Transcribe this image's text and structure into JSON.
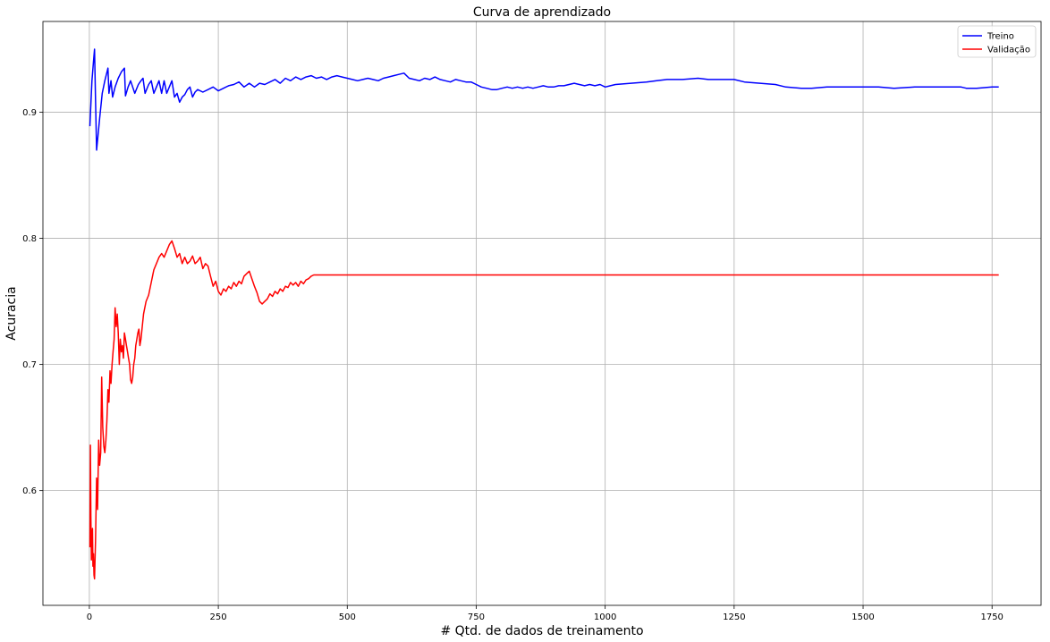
{
  "chart_data": {
    "type": "line",
    "title": "Curva de aprendizado",
    "xlabel": "# Qtd. de dados de treinamento",
    "ylabel": "Acuracia",
    "xlim": [
      -90,
      1845
    ],
    "ylim": [
      0.509,
      0.972
    ],
    "xticks": [
      0,
      250,
      500,
      750,
      1000,
      1250,
      1500,
      1750
    ],
    "yticks": [
      0.6,
      0.7,
      0.8,
      0.9
    ],
    "xtick_labels": [
      "0",
      "250",
      "500",
      "750",
      "1000",
      "1250",
      "1500",
      "1750"
    ],
    "ytick_labels": [
      "0.6",
      "0.7",
      "0.8",
      "0.9"
    ],
    "grid": true,
    "legend_position": "top-right",
    "series": [
      {
        "name": "Treino",
        "color": "#0000ff",
        "x": [
          1,
          5,
          8,
          10,
          12,
          14,
          20,
          25,
          30,
          36,
          38,
          42,
          45,
          50,
          56,
          62,
          68,
          70,
          75,
          80,
          88,
          95,
          100,
          104,
          108,
          115,
          120,
          125,
          130,
          135,
          140,
          145,
          150,
          155,
          160,
          165,
          170,
          175,
          180,
          185,
          190,
          195,
          200,
          205,
          210,
          220,
          230,
          240,
          250,
          260,
          270,
          280,
          290,
          300,
          310,
          320,
          330,
          340,
          350,
          360,
          370,
          380,
          390,
          400,
          410,
          420,
          430,
          440,
          450,
          460,
          470,
          480,
          490,
          500,
          510,
          520,
          530,
          540,
          550,
          560,
          570,
          580,
          590,
          600,
          610,
          620,
          630,
          640,
          650,
          660,
          670,
          680,
          690,
          700,
          710,
          720,
          730,
          740,
          750,
          760,
          770,
          780,
          790,
          800,
          810,
          820,
          830,
          840,
          850,
          860,
          870,
          880,
          890,
          900,
          910,
          920,
          930,
          940,
          950,
          960,
          970,
          980,
          990,
          1000,
          1010,
          1020,
          1050,
          1080,
          1100,
          1120,
          1150,
          1180,
          1200,
          1220,
          1250,
          1270,
          1300,
          1330,
          1350,
          1380,
          1400,
          1430,
          1460,
          1500,
          1530,
          1560,
          1600,
          1630,
          1660,
          1690,
          1700,
          1720,
          1750,
          1763
        ],
        "y": [
          0.889,
          0.925,
          0.94,
          0.95,
          0.91,
          0.87,
          0.895,
          0.915,
          0.925,
          0.935,
          0.915,
          0.925,
          0.912,
          0.92,
          0.927,
          0.932,
          0.935,
          0.913,
          0.92,
          0.925,
          0.915,
          0.922,
          0.925,
          0.927,
          0.915,
          0.922,
          0.925,
          0.915,
          0.92,
          0.925,
          0.915,
          0.925,
          0.915,
          0.92,
          0.925,
          0.912,
          0.915,
          0.908,
          0.912,
          0.914,
          0.918,
          0.92,
          0.912,
          0.916,
          0.918,
          0.916,
          0.918,
          0.92,
          0.917,
          0.919,
          0.921,
          0.922,
          0.924,
          0.92,
          0.923,
          0.92,
          0.923,
          0.922,
          0.924,
          0.926,
          0.923,
          0.927,
          0.925,
          0.928,
          0.926,
          0.928,
          0.929,
          0.927,
          0.928,
          0.926,
          0.928,
          0.929,
          0.928,
          0.927,
          0.926,
          0.925,
          0.926,
          0.927,
          0.926,
          0.925,
          0.927,
          0.928,
          0.929,
          0.93,
          0.931,
          0.927,
          0.926,
          0.925,
          0.927,
          0.926,
          0.928,
          0.926,
          0.925,
          0.924,
          0.926,
          0.925,
          0.924,
          0.924,
          0.922,
          0.92,
          0.919,
          0.918,
          0.918,
          0.919,
          0.92,
          0.919,
          0.92,
          0.919,
          0.92,
          0.919,
          0.92,
          0.921,
          0.92,
          0.92,
          0.921,
          0.921,
          0.922,
          0.923,
          0.922,
          0.921,
          0.922,
          0.921,
          0.922,
          0.92,
          0.921,
          0.922,
          0.923,
          0.924,
          0.925,
          0.926,
          0.926,
          0.927,
          0.926,
          0.926,
          0.926,
          0.924,
          0.923,
          0.922,
          0.92,
          0.919,
          0.919,
          0.92,
          0.92,
          0.92,
          0.92,
          0.919,
          0.92,
          0.92,
          0.92,
          0.92,
          0.919,
          0.919,
          0.92,
          0.92
        ]
      },
      {
        "name": "Validação",
        "color": "#ff0000",
        "x": [
          1,
          2,
          3,
          4,
          5,
          6,
          7,
          8,
          9,
          10,
          12,
          14,
          16,
          18,
          20,
          22,
          24,
          26,
          28,
          30,
          32,
          34,
          36,
          38,
          40,
          42,
          44,
          46,
          48,
          50,
          52,
          54,
          56,
          58,
          60,
          62,
          64,
          66,
          68,
          70,
          72,
          74,
          76,
          78,
          80,
          82,
          84,
          86,
          88,
          90,
          92,
          94,
          96,
          98,
          100,
          105,
          110,
          115,
          120,
          125,
          130,
          135,
          140,
          145,
          150,
          155,
          160,
          165,
          170,
          175,
          180,
          185,
          190,
          195,
          200,
          205,
          210,
          215,
          220,
          225,
          230,
          235,
          240,
          245,
          250,
          255,
          260,
          265,
          270,
          275,
          280,
          285,
          290,
          295,
          300,
          305,
          310,
          315,
          320,
          325,
          330,
          335,
          340,
          345,
          350,
          355,
          360,
          365,
          370,
          375,
          380,
          385,
          390,
          395,
          400,
          405,
          410,
          415,
          420,
          425,
          430,
          435,
          440,
          500,
          750,
          1000,
          1250,
          1500,
          1763
        ],
        "y": [
          0.555,
          0.636,
          0.58,
          0.545,
          0.56,
          0.57,
          0.54,
          0.55,
          0.533,
          0.53,
          0.56,
          0.61,
          0.585,
          0.64,
          0.62,
          0.63,
          0.69,
          0.65,
          0.635,
          0.63,
          0.64,
          0.655,
          0.68,
          0.67,
          0.695,
          0.685,
          0.7,
          0.71,
          0.72,
          0.745,
          0.73,
          0.74,
          0.725,
          0.7,
          0.72,
          0.71,
          0.715,
          0.705,
          0.725,
          0.72,
          0.715,
          0.71,
          0.705,
          0.7,
          0.688,
          0.685,
          0.69,
          0.7,
          0.705,
          0.715,
          0.72,
          0.725,
          0.728,
          0.715,
          0.72,
          0.74,
          0.75,
          0.755,
          0.765,
          0.775,
          0.78,
          0.785,
          0.788,
          0.785,
          0.79,
          0.795,
          0.798,
          0.792,
          0.785,
          0.788,
          0.78,
          0.785,
          0.78,
          0.782,
          0.786,
          0.78,
          0.782,
          0.785,
          0.776,
          0.78,
          0.778,
          0.77,
          0.762,
          0.766,
          0.758,
          0.755,
          0.76,
          0.758,
          0.762,
          0.76,
          0.765,
          0.762,
          0.766,
          0.764,
          0.77,
          0.772,
          0.774,
          0.768,
          0.762,
          0.757,
          0.75,
          0.748,
          0.75,
          0.752,
          0.756,
          0.754,
          0.758,
          0.756,
          0.76,
          0.758,
          0.762,
          0.761,
          0.765,
          0.763,
          0.765,
          0.762,
          0.766,
          0.764,
          0.767,
          0.768,
          0.77,
          0.771,
          0.771,
          0.771,
          0.771,
          0.771,
          0.771,
          0.771,
          0.771
        ]
      }
    ]
  }
}
